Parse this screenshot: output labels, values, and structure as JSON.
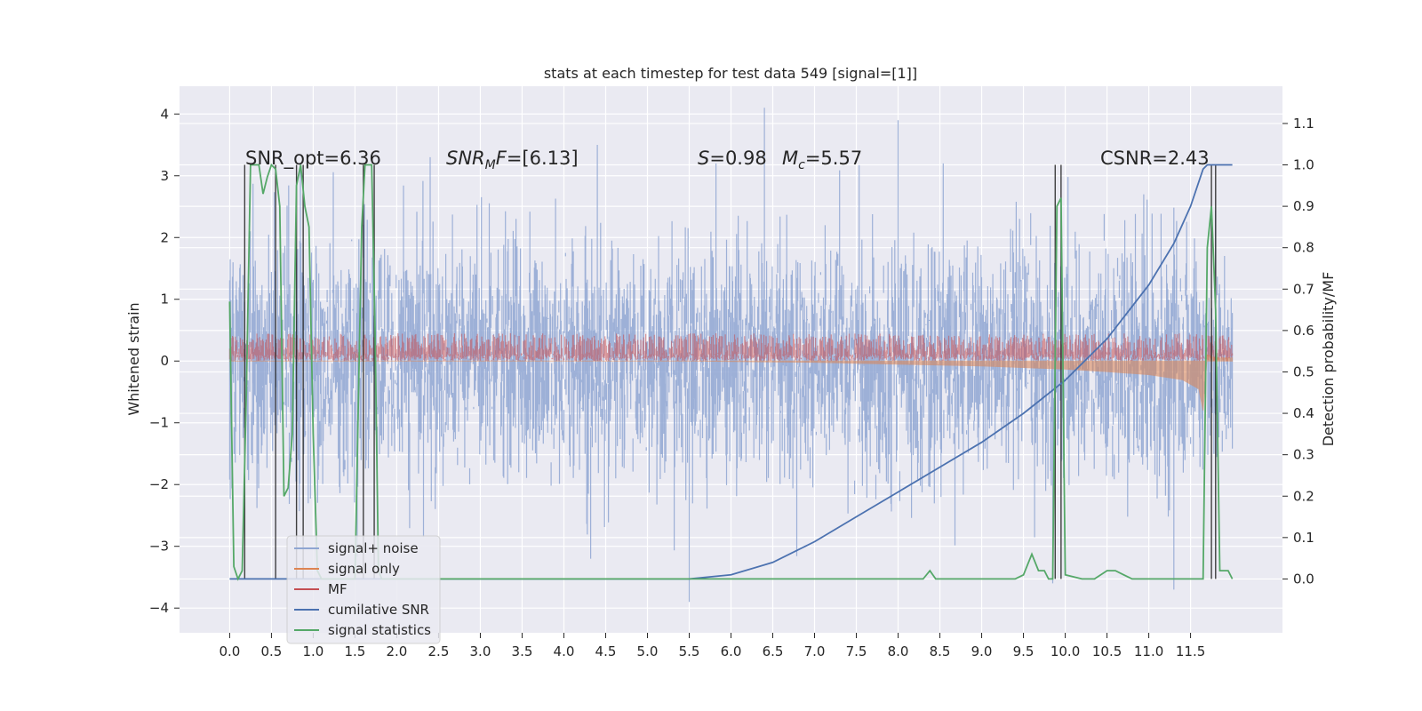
{
  "chart_data": {
    "type": "line",
    "title": "stats at each timestep for test data 549 [signal=[1]]",
    "ylabel_left": "Whitened strain",
    "ylabel_right": "Detection probability/MF",
    "xlim": [
      -0.6,
      12.6
    ],
    "ylim_left": [
      -4.4,
      4.45
    ],
    "ylim_right": [
      -0.13,
      1.19
    ],
    "xticks": [
      "0.0",
      "0.5",
      "1.0",
      "1.5",
      "2.0",
      "2.5",
      "3.0",
      "3.5",
      "4.0",
      "4.5",
      "5.0",
      "5.5",
      "6.0",
      "6.5",
      "7.0",
      "7.5",
      "8.0",
      "8.5",
      "9.0",
      "9.5",
      "10.0",
      "10.5",
      "11.0",
      "11.5"
    ],
    "yticks_left": [
      "4",
      "3",
      "2",
      "1",
      "0",
      "−1",
      "−2",
      "−3",
      "−4"
    ],
    "yticks_right": [
      "1.1",
      "1.0",
      "0.9",
      "0.8",
      "0.7",
      "0.6",
      "0.5",
      "0.4",
      "0.3",
      "0.2",
      "0.1",
      "0.0"
    ],
    "grid": true,
    "legend_position": "lower-left",
    "annotations": {
      "snr_opt": "SNR_opt=6.36",
      "snr_mf_sym": "SNR",
      "snr_mf_sub": "M",
      "snr_mf_rest": "F=[6.13]",
      "s_sym": "S",
      "s_val": "=0.98",
      "mc_sym": "M",
      "mc_sub": "c",
      "mc_val": "=5.57",
      "csnr": "CSNR=2.43"
    },
    "series": [
      {
        "name": "signal+ noise",
        "axis": "left",
        "color": "#8fa6d2",
        "x_range": [
          0,
          12
        ],
        "approx_range": [
          -2.5,
          2.5
        ],
        "peaks": [
          [
            6.4,
            4.1
          ],
          [
            8.0,
            3.9
          ],
          [
            5.5,
            -3.9
          ],
          [
            11.3,
            -3.7
          ],
          [
            9.85,
            -3.6
          ],
          [
            4.4,
            3.5
          ],
          [
            2.4,
            3.3
          ]
        ]
      },
      {
        "name": "signal only",
        "axis": "left",
        "color": "#dd8452",
        "x": [
          0,
          5.5,
          7,
          8,
          9,
          10,
          10.5,
          11,
          11.4,
          11.6,
          11.65,
          11.7,
          11.8,
          12.0
        ],
        "y": [
          0,
          0,
          -0.02,
          -0.05,
          -0.08,
          -0.13,
          -0.17,
          -0.22,
          -0.3,
          -0.45,
          -0.8,
          0.1,
          0.05,
          0.05
        ]
      },
      {
        "name": "MF",
        "axis": "left",
        "color": "#c44e52",
        "approx_range": [
          0.0,
          0.45
        ],
        "x_range": [
          0,
          12
        ]
      },
      {
        "name": "cumilative SNR",
        "axis": "right",
        "color": "#4c72b0",
        "x": [
          0,
          5.5,
          6.0,
          6.5,
          7.0,
          7.5,
          8.0,
          8.5,
          9.0,
          9.5,
          10.0,
          10.5,
          11.0,
          11.3,
          11.5,
          11.65,
          11.7,
          12.0
        ],
        "y": [
          0,
          0,
          0.01,
          0.04,
          0.09,
          0.15,
          0.21,
          0.27,
          0.33,
          0.4,
          0.48,
          0.58,
          0.71,
          0.81,
          0.9,
          0.99,
          1.0,
          1.0
        ]
      },
      {
        "name": "signal statistics",
        "axis": "right",
        "color": "#55a868",
        "x": [
          0,
          0.05,
          0.1,
          0.15,
          0.2,
          0.25,
          0.3,
          0.35,
          0.4,
          0.45,
          0.5,
          0.55,
          0.6,
          0.65,
          0.7,
          0.75,
          0.8,
          0.85,
          0.9,
          0.95,
          1.0,
          1.05,
          1.1,
          1.2,
          1.5,
          1.58,
          1.62,
          1.66,
          1.7,
          1.74,
          1.78,
          1.82,
          1.86,
          2.0,
          8.3,
          8.38,
          8.45,
          8.55,
          9.4,
          9.5,
          9.6,
          9.68,
          9.75,
          9.8,
          9.85,
          9.9,
          9.95,
          10.0,
          10.2,
          10.35,
          10.5,
          10.6,
          10.7,
          10.8,
          11.0,
          11.4,
          11.5,
          11.6,
          11.65,
          11.7,
          11.75,
          11.8,
          11.85,
          11.9,
          11.95,
          12.0
        ],
        "y": [
          0.67,
          0.03,
          0.0,
          0.02,
          0.45,
          1.0,
          1.0,
          1.0,
          0.93,
          0.97,
          1.0,
          0.99,
          0.9,
          0.2,
          0.22,
          0.35,
          0.95,
          1.0,
          0.9,
          0.85,
          0.35,
          0.02,
          0.0,
          0.0,
          0.0,
          0.85,
          1.0,
          1.0,
          1.0,
          0.6,
          0.02,
          0.0,
          0.0,
          0.0,
          0.0,
          0.02,
          0.0,
          0.0,
          0.0,
          0.01,
          0.06,
          0.02,
          0.02,
          0.0,
          0.0,
          0.9,
          0.92,
          0.01,
          0.0,
          0.0,
          0.02,
          0.02,
          0.01,
          0.0,
          0.0,
          0.0,
          0.0,
          0.0,
          0.0,
          0.8,
          0.9,
          0.65,
          0.02,
          0.02,
          0.02,
          0.0
        ]
      }
    ],
    "detection_markers": {
      "color": "#222222",
      "x": [
        0.18,
        0.55,
        0.8,
        0.88,
        1.6,
        1.73,
        9.88,
        9.95,
        11.75,
        11.8
      ]
    }
  }
}
